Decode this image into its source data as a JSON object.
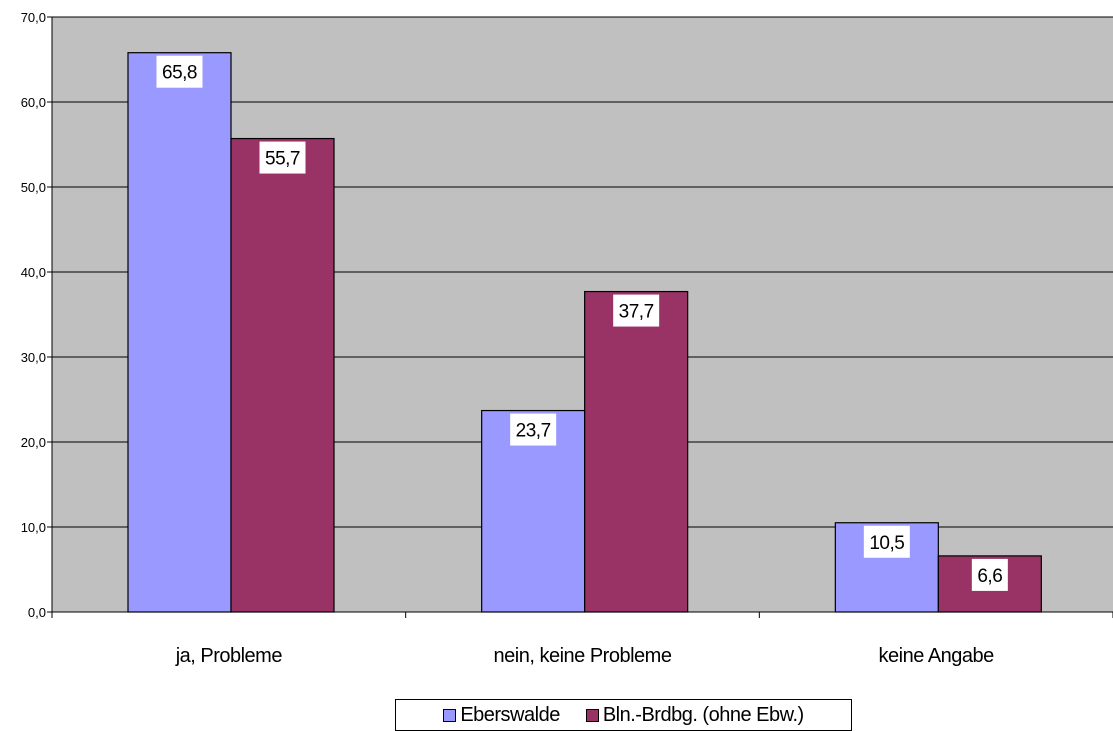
{
  "chart_data": {
    "type": "bar",
    "categories": [
      "ja, Probleme",
      "nein, keine Probleme",
      "keine Angabe"
    ],
    "series": [
      {
        "name": "Eberswalde",
        "values": [
          65.8,
          23.7,
          10.5
        ],
        "color": "#9999ff",
        "labels": [
          "65,8",
          "23,7",
          "10,5"
        ]
      },
      {
        "name": "Bln.-Brdbg. (ohne Ebw.)",
        "values": [
          55.7,
          37.7,
          6.6
        ],
        "color": "#993366",
        "labels": [
          "55,7",
          "37,7",
          "6,6"
        ]
      }
    ],
    "ylim": [
      0,
      70
    ],
    "yticks": [
      0,
      10,
      20,
      30,
      40,
      50,
      60,
      70
    ],
    "ytick_labels": [
      "0,0",
      "10,0",
      "20,0",
      "30,0",
      "40,0",
      "50,0",
      "60,0",
      "70,0"
    ],
    "grid": true,
    "plot_background": "#c0c0c0",
    "legend_position": "bottom"
  }
}
